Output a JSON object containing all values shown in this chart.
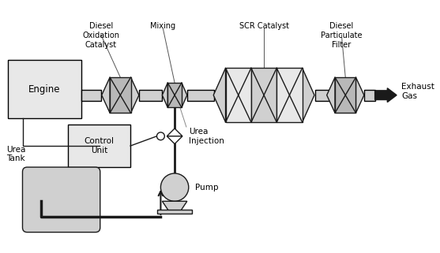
{
  "background_color": "#ffffff",
  "line_color": "#1a1a1a",
  "box_fill_light": "#e8e8e8",
  "box_fill_mid": "#d0d0d0",
  "box_fill_dark": "#b8b8b8",
  "pipe_fill": "#d0d0d0",
  "labels": {
    "doc": "Diesel\nOxidation\nCatalyst",
    "mixing": "Mixing",
    "scr": "SCR Catalyst",
    "dpf": "Diesel\nParticulate\nFilter",
    "engine": "Engine",
    "exhaust": "Exhaust\nGas",
    "control": "Control\nUnit",
    "urea_inj": "Urea\nInjection",
    "urea_tank": "Urea\nTank",
    "pump": "Pump"
  },
  "figsize": [
    5.57,
    3.21
  ],
  "dpi": 100
}
